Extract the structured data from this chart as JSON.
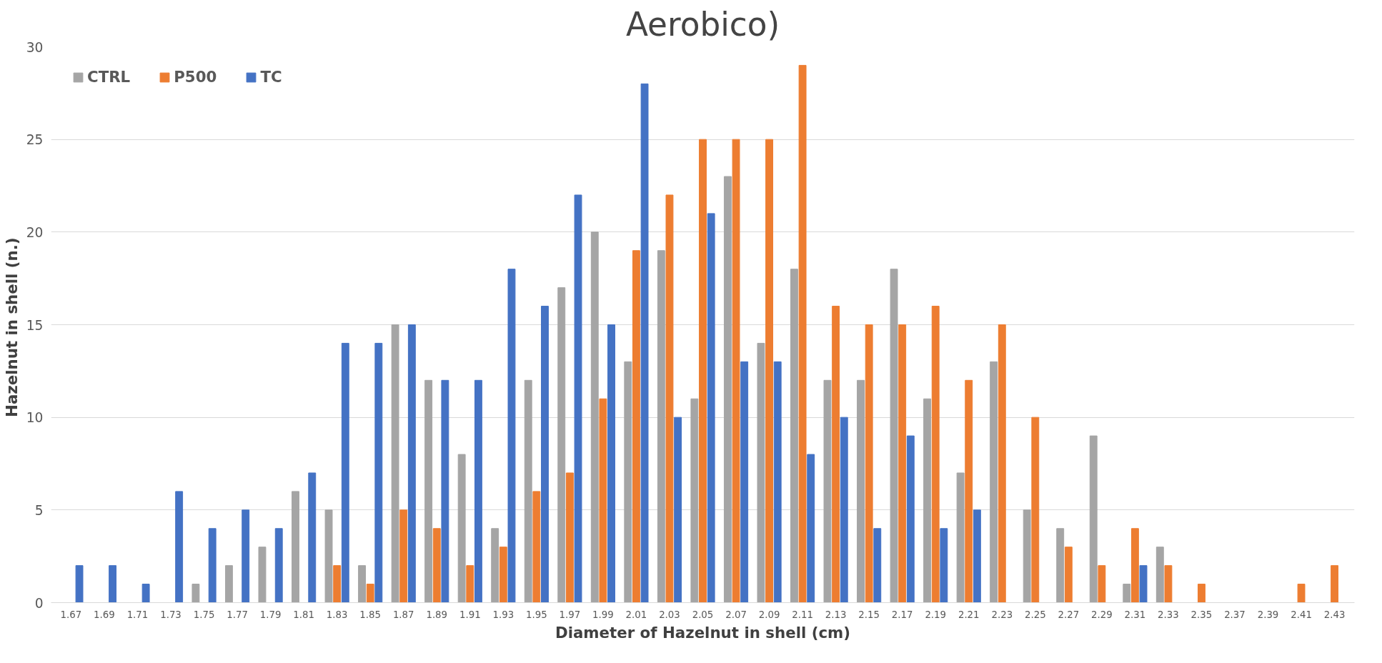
{
  "chart_data": {
    "type": "bar",
    "title": "Aerobico)",
    "xlabel": "Diameter of Hazelnut in shell (cm)",
    "ylabel": "Hazelnut in shell  (n.)",
    "categories": [
      "1.67",
      "1.69",
      "1.71",
      "1.73",
      "1.75",
      "1.77",
      "1.79",
      "1.81",
      "1.83",
      "1.85",
      "1.87",
      "1.89",
      "1.91",
      "1.93",
      "1.95",
      "1.97",
      "1.99",
      "2.01",
      "2.03",
      "2.05",
      "2.07",
      "2.09",
      "2.11",
      "2.13",
      "2.15",
      "2.17",
      "2.19",
      "2.21",
      "2.23",
      "2.25",
      "2.27",
      "2.29",
      "2.31",
      "2.33",
      "2.35",
      "2.37",
      "2.39",
      "2.41",
      "2.43"
    ],
    "series": [
      {
        "name": "CTRL",
        "color": "#a5a5a5",
        "values": [
          0,
          0,
          0,
          0,
          1,
          2,
          3,
          6,
          5,
          2,
          15,
          12,
          8,
          4,
          12,
          17,
          20,
          13,
          19,
          11,
          23,
          14,
          18,
          12,
          12,
          18,
          11,
          7,
          13,
          5,
          4,
          9,
          1,
          3,
          0,
          0,
          0,
          0,
          0
        ]
      },
      {
        "name": "P500",
        "color": "#ed7d31",
        "values": [
          0,
          0,
          0,
          0,
          0,
          0,
          0,
          0,
          2,
          1,
          5,
          4,
          2,
          3,
          6,
          7,
          11,
          19,
          22,
          25,
          25,
          25,
          29,
          16,
          15,
          15,
          16,
          12,
          15,
          10,
          3,
          2,
          4,
          2,
          1,
          0,
          0,
          1,
          2
        ]
      },
      {
        "name": "TC",
        "color": "#4472c4",
        "values": [
          2,
          2,
          1,
          6,
          4,
          5,
          4,
          7,
          14,
          14,
          15,
          12,
          12,
          18,
          16,
          22,
          15,
          28,
          10,
          21,
          13,
          13,
          8,
          10,
          4,
          9,
          4,
          5,
          0,
          0,
          0,
          0,
          2,
          0,
          0,
          0,
          0,
          0,
          0
        ]
      }
    ],
    "ylim": [
      0,
      30
    ],
    "yticks": [
      0,
      5,
      10,
      15,
      20,
      25,
      30
    ],
    "grid": "y",
    "legend": "top left"
  }
}
